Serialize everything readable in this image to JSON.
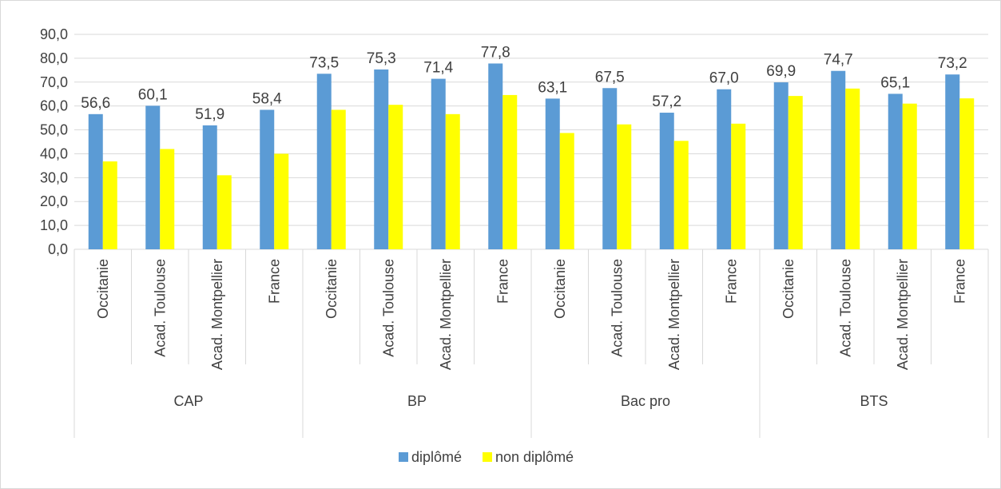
{
  "chart_data": {
    "type": "bar",
    "title": "",
    "xlabel": "",
    "ylabel": "",
    "ylim": [
      0,
      90
    ],
    "yticks": [
      "0,0",
      "10,0",
      "20,0",
      "30,0",
      "40,0",
      "50,0",
      "60,0",
      "70,0",
      "80,0",
      "90,0"
    ],
    "grid": true,
    "legend_position": "bottom",
    "groups": [
      {
        "name": "CAP",
        "categories": [
          "Occitanie",
          "Acad. Toulouse",
          "Acad. Montpellier",
          "France"
        ]
      },
      {
        "name": "BP",
        "categories": [
          "Occitanie",
          "Acad. Toulouse",
          "Acad. Montpellier",
          "France"
        ]
      },
      {
        "name": "Bac pro",
        "categories": [
          "Occitanie",
          "Acad. Toulouse",
          "Acad. Montpellier",
          "France"
        ]
      },
      {
        "name": "BTS",
        "categories": [
          "Occitanie",
          "Acad. Toulouse",
          "Acad. Montpellier",
          "France"
        ]
      }
    ],
    "series": [
      {
        "name": "diplômé",
        "color": "#5b9bd5",
        "values": [
          56.6,
          60.1,
          51.9,
          58.4,
          73.5,
          75.3,
          71.4,
          77.8,
          63.1,
          67.5,
          57.2,
          67.0,
          69.9,
          74.7,
          65.1,
          73.2
        ],
        "labels": [
          "56,6",
          "60,1",
          "51,9",
          "58,4",
          "73,5",
          "75,3",
          "71,4",
          "77,8",
          "63,1",
          "67,5",
          "57,2",
          "67,0",
          "69,9",
          "74,7",
          "65,1",
          "73,2"
        ]
      },
      {
        "name": "non diplômé",
        "color": "#ffff00",
        "values": [
          36.8,
          42.0,
          31.0,
          40.0,
          58.4,
          60.5,
          56.6,
          64.6,
          48.7,
          52.3,
          45.4,
          52.6,
          64.2,
          67.3,
          61.0,
          63.2
        ]
      }
    ]
  }
}
